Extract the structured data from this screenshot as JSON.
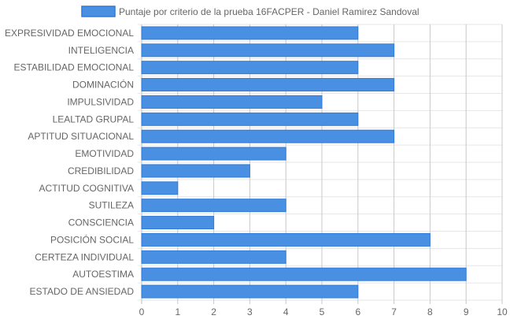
{
  "chart_data": {
    "type": "bar",
    "orientation": "horizontal",
    "categories": [
      "EXPRESIVIDAD EMOCIONAL",
      "INTELIGENCIA",
      "ESTABILIDAD EMOCIONAL",
      "DOMINACIÓN",
      "IMPULSIVIDAD",
      "LEALTAD GRUPAL",
      "APTITUD SITUACIONAL",
      "EMOTIVIDAD",
      "CREDIBILIDAD",
      "ACTITUD COGNITIVA",
      "SUTILEZA",
      "CONSCIENCIA",
      "POSICIÓN SOCIAL",
      "CERTEZA INDIVIDUAL",
      "AUTOESTIMA",
      "ESTADO DE ANSIEDAD"
    ],
    "series": [
      {
        "name": "Puntaje por criterio de la prueba 16FACPER - Daniel Ramirez Sandoval",
        "values": [
          6,
          7,
          6,
          7,
          5,
          6,
          7,
          4,
          3,
          1,
          4,
          2,
          8,
          4,
          9,
          6
        ],
        "color": "#4a90e2",
        "border_color": "#2f7ad9"
      }
    ],
    "xlim": [
      0,
      10
    ],
    "x_ticks": [
      "0",
      "1",
      "2",
      "3",
      "4",
      "5",
      "6",
      "7",
      "8",
      "9",
      "10"
    ],
    "grid": true,
    "legend_position": "top"
  }
}
